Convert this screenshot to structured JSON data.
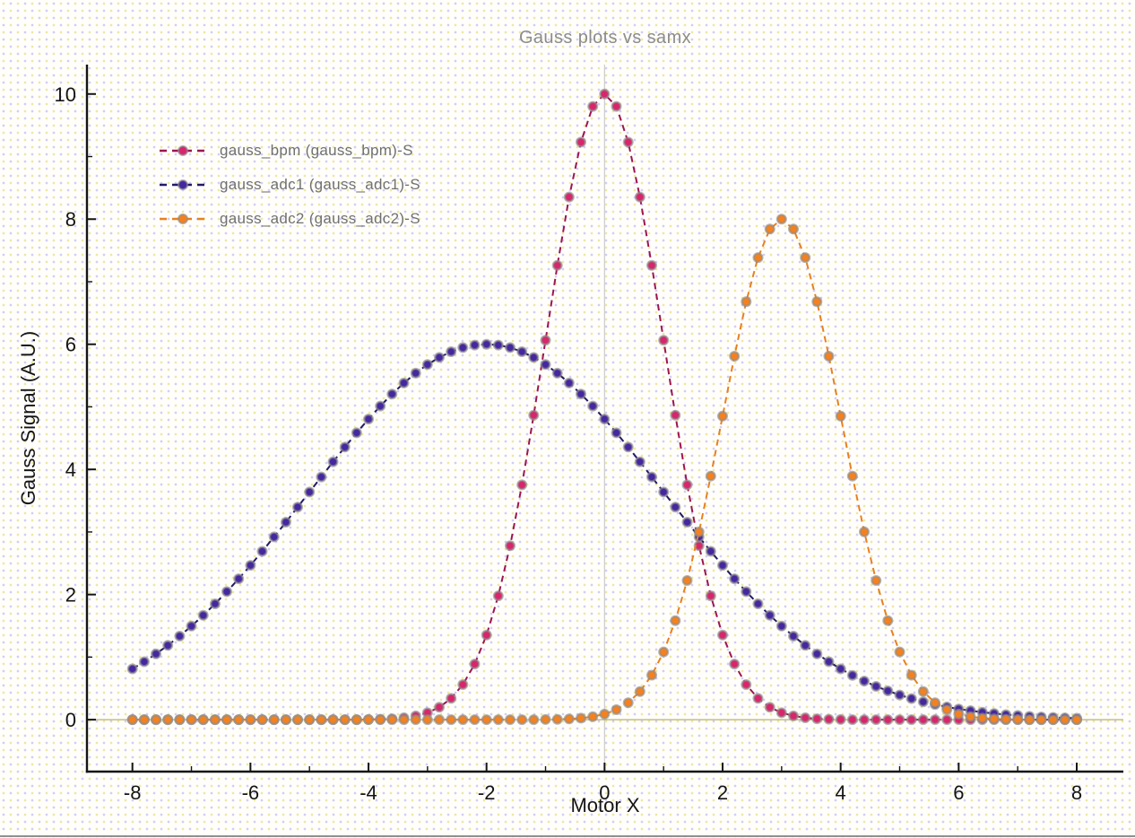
{
  "chart_data": {
    "type": "line",
    "title": "Gauss plots vs samx",
    "legend_position": "top-left",
    "grid": "single vertical gridline at x=0, olive horizontal baseline at y=0",
    "x_axis": {
      "label": "Motor X",
      "ticks": [
        -8,
        -6,
        -4,
        -2,
        0,
        2,
        4,
        6,
        8
      ],
      "minor_ticks": [
        -7,
        -5,
        -3,
        -1,
        1,
        3,
        5,
        7
      ]
    },
    "y_axis": {
      "label": "Gauss Signal (A.U.)",
      "ticks": [
        0,
        2,
        4,
        6,
        8,
        10
      ],
      "minor_ticks": [
        1,
        3,
        5,
        7,
        9
      ]
    },
    "xlim": [
      -8.77,
      8.79
    ],
    "ylim": [
      -0.83,
      10.47
    ],
    "v_grid": [
      0
    ],
    "zero_line_y": 0,
    "x_start": -8,
    "x_step": 0.2,
    "n_points": 81,
    "series": [
      {
        "id": "gauss_bpm",
        "name": "gauss_bpm (gauss_bpm)-S",
        "marker_color": "#d9256b",
        "line_color": "#9c1550",
        "gaussian": {
          "amplitude": 10,
          "center": 0,
          "sigma": 1
        },
        "values": [
          0,
          0,
          0,
          0,
          0,
          0,
          0,
          0,
          0,
          0,
          0,
          0,
          0,
          0,
          0,
          0,
          0,
          0,
          0.001,
          0.001,
          0.003,
          0.007,
          0.015,
          0.031,
          0.06,
          0.111,
          0.198,
          0.34,
          0.561,
          0.889,
          1.353,
          1.979,
          2.78,
          3.753,
          4.868,
          6.065,
          7.261,
          8.353,
          9.231,
          9.802,
          10,
          9.802,
          9.231,
          8.353,
          7.261,
          6.065,
          4.868,
          3.753,
          2.78,
          1.979,
          1.353,
          0.889,
          0.561,
          0.34,
          0.198,
          0.111,
          0.06,
          0.031,
          0.015,
          0.007,
          0.003,
          0.001,
          0.001,
          0,
          0,
          0,
          0,
          0,
          0,
          0,
          0,
          0,
          0,
          0,
          0,
          0,
          0,
          0,
          0,
          0,
          0
        ]
      },
      {
        "id": "gauss_adc1",
        "name": "gauss_adc1 (gauss_adc1)-S",
        "marker_color": "#4527a0",
        "line_color": "#241a66",
        "gaussian": {
          "amplitude": 6,
          "center": -2,
          "sigma": 3
        },
        "values": [
          0.812,
          0.926,
          1.051,
          1.187,
          1.336,
          1.496,
          1.668,
          1.852,
          2.047,
          2.252,
          2.467,
          2.69,
          2.921,
          3.157,
          3.397,
          3.639,
          3.88,
          4.121,
          4.357,
          4.585,
          4.804,
          5.012,
          5.204,
          5.381,
          5.539,
          5.676,
          5.79,
          5.881,
          5.947,
          5.987,
          6,
          5.987,
          5.947,
          5.881,
          5.79,
          5.676,
          5.539,
          5.381,
          5.204,
          5.012,
          4.804,
          4.585,
          4.357,
          4.121,
          3.88,
          3.639,
          3.397,
          3.157,
          2.921,
          2.69,
          2.467,
          2.252,
          2.047,
          1.852,
          1.668,
          1.496,
          1.336,
          1.187,
          1.051,
          0.926,
          0.812,
          0.709,
          0.617,
          0.533,
          0.46,
          0.394,
          0.337,
          0.286,
          0.242,
          0.204,
          0.171,
          0.143,
          0.119,
          0.099,
          0.081,
          0.067,
          0.054,
          0.044,
          0.036,
          0.029,
          0.023
        ]
      },
      {
        "id": "gauss_adc2",
        "name": "gauss_adc2 (gauss_adc2)-S",
        "marker_color": "#f5811e",
        "line_color": "#e8801f",
        "gaussian": {
          "amplitude": 8,
          "center": 3,
          "sigma": 1
        },
        "values": [
          0,
          0,
          0,
          0,
          0,
          0,
          0,
          0,
          0,
          0,
          0,
          0,
          0,
          0,
          0,
          0,
          0,
          0,
          0,
          0,
          0,
          0,
          0,
          0,
          0,
          0,
          0,
          0,
          0,
          0,
          0,
          0,
          0,
          0.001,
          0.001,
          0.003,
          0.006,
          0.012,
          0.025,
          0.048,
          0.089,
          0.159,
          0.272,
          0.449,
          0.711,
          1.083,
          1.583,
          2.224,
          3.002,
          3.894,
          4.852,
          5.809,
          6.682,
          7.385,
          7.842,
          8,
          7.842,
          7.385,
          6.682,
          5.809,
          4.852,
          3.894,
          3.002,
          2.224,
          1.583,
          1.083,
          0.711,
          0.449,
          0.272,
          0.159,
          0.089,
          0.048,
          0.025,
          0.012,
          0.006,
          0.003,
          0.001,
          0.001,
          0,
          0,
          0
        ]
      }
    ]
  },
  "colors": {
    "axis": "#141414",
    "grid_line": "#cccccc",
    "zero_line": "#b9b269",
    "title_text": "#8c8c8c",
    "legend_text": "#707070",
    "marker_halo": "rgba(140,140,140,0.65)",
    "bottom_border": "#8f8f8f"
  }
}
